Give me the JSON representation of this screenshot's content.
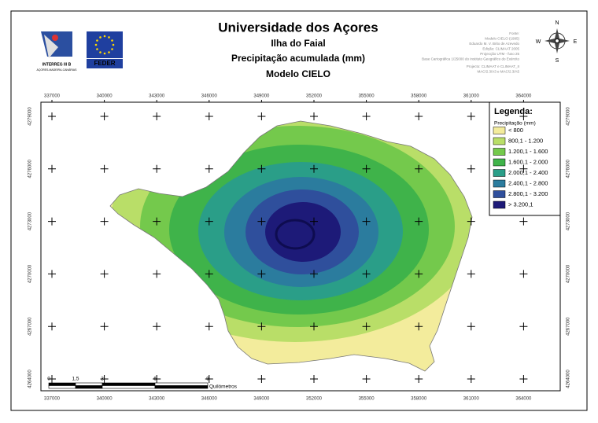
{
  "header": {
    "title": "Universidade dos Açores",
    "subtitle": "Ilha do Faial",
    "map_title": "Precipitação acumulada (mm)",
    "model": "Modelo CIELO"
  },
  "logos": {
    "interreg": "INTERREG III B",
    "interreg_sub": "AÇORES-MADEIRA-CANÁRIAS",
    "feder": "FEDER"
  },
  "source": [
    "Fonte:",
    "Modelo CIELO (1995)",
    "Eduardo M. V. Brito de Azevedo",
    "Edição: CLIMAAT 2005",
    "Projecção UTM - fuso 25",
    "Base Cartográfica 1/25000 do Instituto Geográfico do Exército",
    "Projecto: CLIMAAT e CLIMAAT_II",
    "MAC/2.3/A3 e MAC/2.3/A5"
  ],
  "compass": {
    "n": "N",
    "s": "S",
    "e": "E",
    "w": "W"
  },
  "x_ticks": [
    "337000",
    "340000",
    "343000",
    "346000",
    "349000",
    "352000",
    "355000",
    "358000",
    "361000",
    "364000"
  ],
  "y_ticks": [
    "4279000",
    "4276000",
    "4273000",
    "4270000",
    "4267000",
    "4264000"
  ],
  "legend": {
    "title": "Legenda:",
    "subtitle": "Precipitação (mm)",
    "classes": [
      {
        "label": "< 800",
        "color": "#f3ec9c"
      },
      {
        "label": "800,1 - 1.200",
        "color": "#b9de68"
      },
      {
        "label": "1.200,1 - 1.600",
        "color": "#74c94c"
      },
      {
        "label": "1.600,1 - 2.000",
        "color": "#3fb34a"
      },
      {
        "label": "2.000,1 - 2.400",
        "color": "#2a9e88"
      },
      {
        "label": "2.400,1 - 2.800",
        "color": "#2b7c9e"
      },
      {
        "label": "2.800,1 - 3.200",
        "color": "#2f4f9c"
      },
      {
        "label": "> 3.200,1",
        "color": "#1d1a78"
      }
    ]
  },
  "scale_bar": {
    "labels": [
      "0",
      "1,5",
      "3",
      "6",
      "9"
    ],
    "unit": "Quilómetros"
  }
}
